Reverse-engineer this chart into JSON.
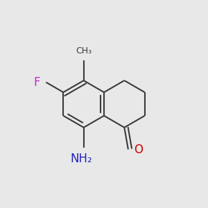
{
  "background_color": "#e8e8e8",
  "bond_color": "#3a3a3a",
  "line_width": 1.5,
  "atom_labels": {
    "F": {
      "color": "#cc22cc",
      "fontsize": 11
    },
    "NH2": {
      "color": "#2222bb",
      "fontsize": 11
    },
    "O": {
      "color": "#cc0000",
      "fontsize": 11
    },
    "CH3": {
      "color": "#3a3a3a",
      "fontsize": 9
    }
  },
  "figsize": [
    3.0,
    3.0
  ],
  "dpi": 100
}
